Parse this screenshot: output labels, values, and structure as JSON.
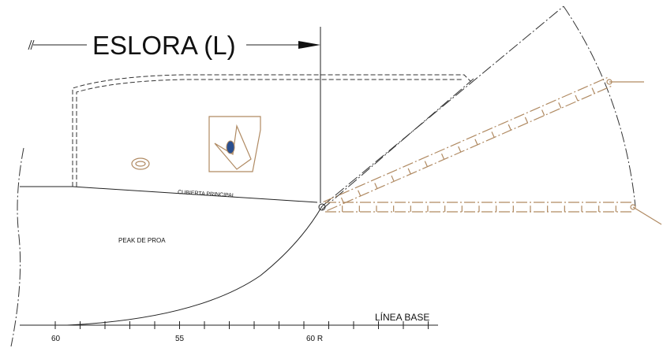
{
  "header": {
    "title": "ESLORA (L)"
  },
  "labels": {
    "deck": "CUBIERTA PRINCIPAL",
    "compartment": "PEAK DE PROA",
    "baseline": "LÍNEA BASE"
  },
  "frames": [
    "60",
    "55",
    "60 R"
  ]
}
